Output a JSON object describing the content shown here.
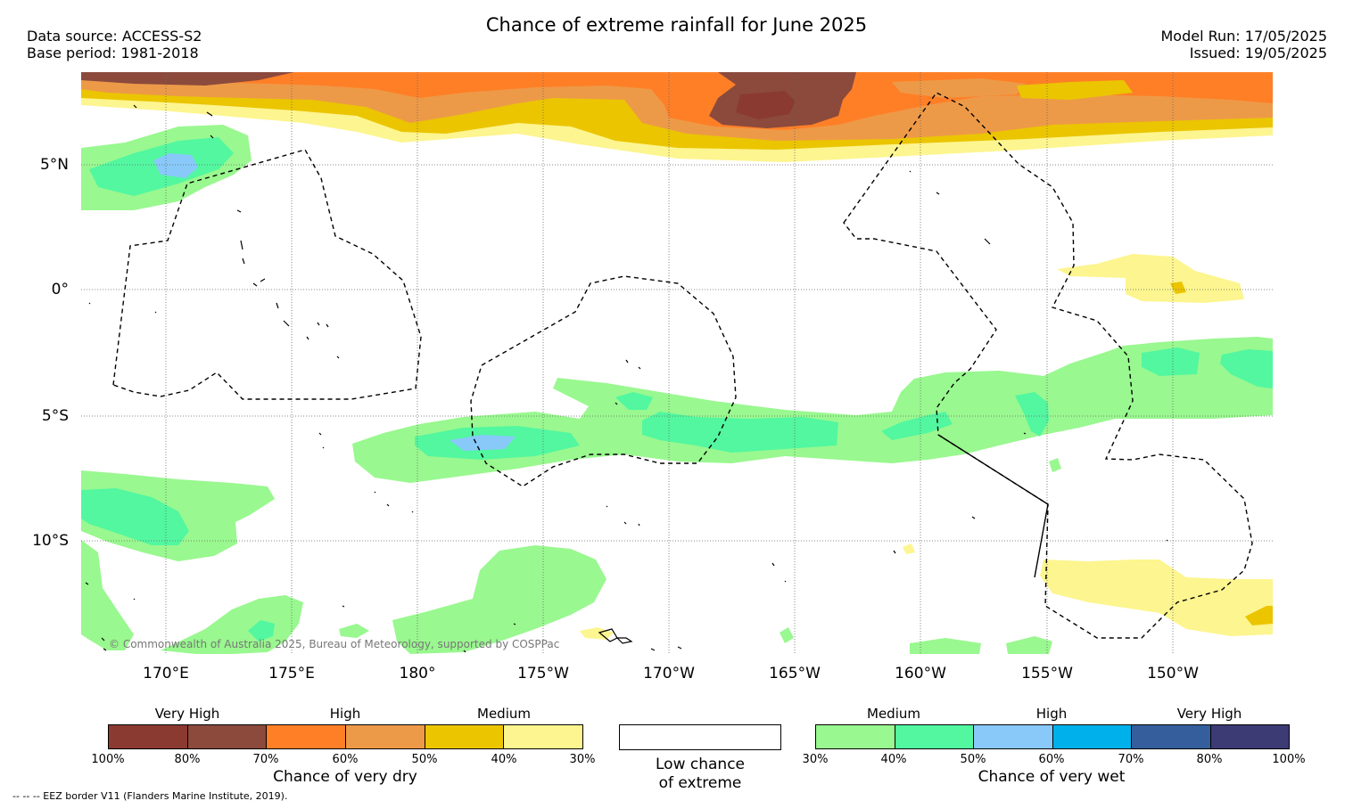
{
  "header": {
    "title": "Chance of extreme rainfall for June 2025",
    "data_source": "Data source: ACCESS-S2",
    "base_period": "Base period: 1981-2018",
    "model_run": "Model Run: 17/05/2025",
    "issued": "Issued: 19/05/2025"
  },
  "map": {
    "lat_labels": [
      "5°N",
      "0°",
      "5°S",
      "10°S"
    ],
    "lon_labels": [
      "170°E",
      "175°E",
      "180°",
      "175°W",
      "170°W",
      "165°W",
      "160°W",
      "155°W",
      "150°W"
    ],
    "copyright": "© Commonwealth of Australia 2025, Bureau of Meteorology, supported by COSPPac"
  },
  "legend": {
    "dry": {
      "categories": [
        "Very High",
        "High",
        "Medium"
      ],
      "ticks": [
        "100%",
        "80%",
        "70%",
        "60%",
        "50%",
        "40%",
        "30%"
      ],
      "colors": [
        "#8b3a32",
        "#8b4a3c",
        "#ff7f27",
        "#ed9a48",
        "#ebc500",
        "#fdf58f"
      ],
      "title": "Chance of very dry"
    },
    "low": {
      "label_line1": "Low chance",
      "label_line2": "of extreme"
    },
    "wet": {
      "categories": [
        "Medium",
        "High",
        "Very High"
      ],
      "ticks": [
        "30%",
        "40%",
        "50%",
        "60%",
        "70%",
        "80%",
        "100%"
      ],
      "colors": [
        "#99f88f",
        "#52f7a0",
        "#88c9fa",
        "#00b0ea",
        "#345f9c",
        "#3c3b74"
      ],
      "title": "Chance of very wet"
    }
  },
  "footer": {
    "eez_note": "--  --  -- EEZ border V11 (Flanders Marine Institute, 2019)."
  }
}
